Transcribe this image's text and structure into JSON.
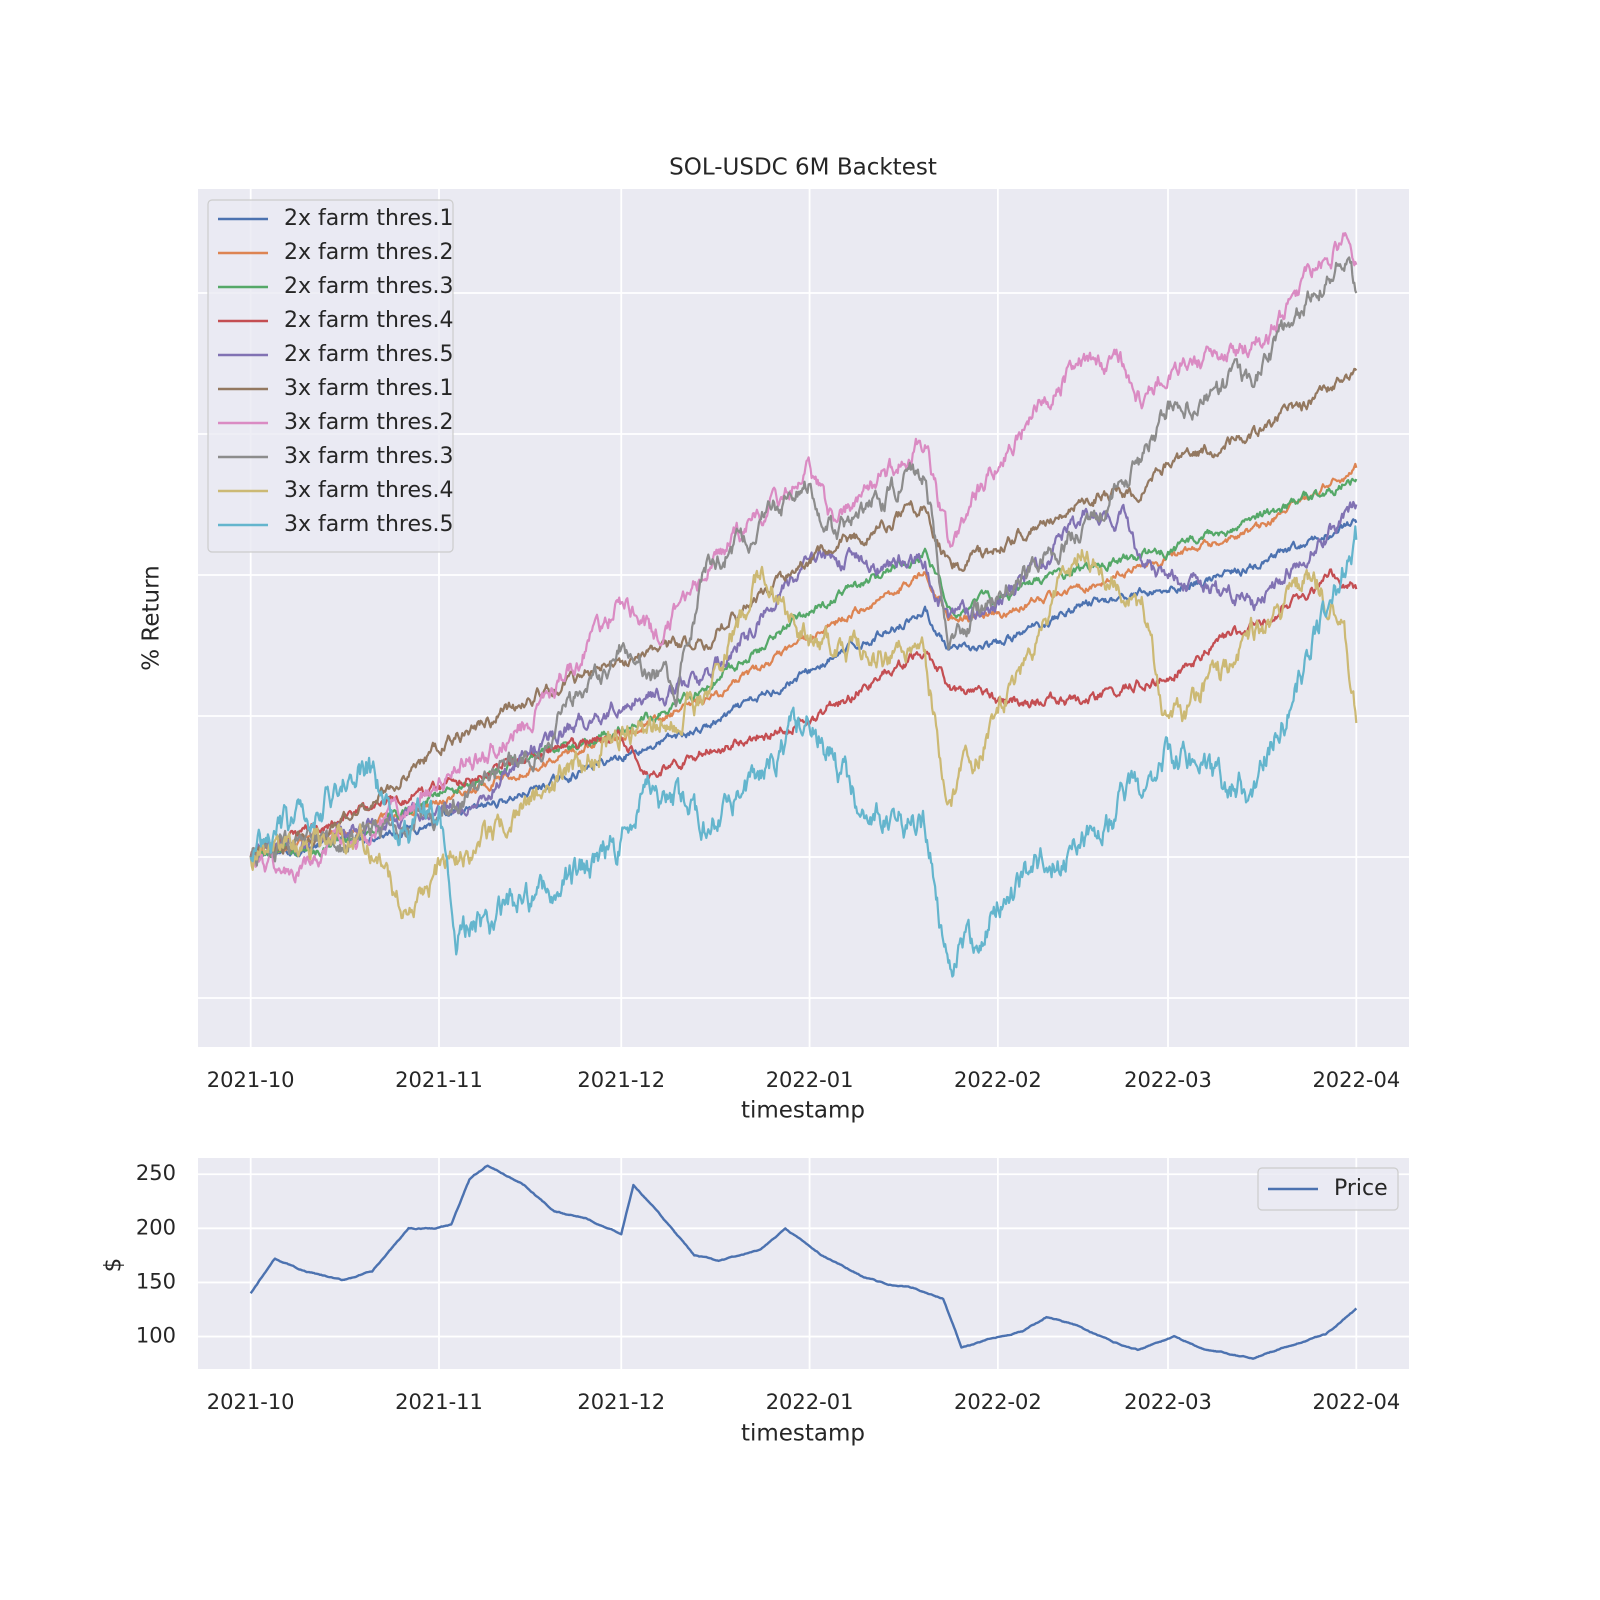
{
  "chart_data": [
    {
      "type": "line",
      "title": "SOL-USDC 6M Backtest",
      "xlabel": "timestamp",
      "ylabel": "% Return",
      "x_range": [
        "2021-10-01",
        "2022-04-01"
      ],
      "x_ticks": [
        "2021-10",
        "2021-11",
        "2021-12",
        "2022-01",
        "2022-02",
        "2022-03",
        "2022-04"
      ],
      "y_tick_labels_shown": false,
      "grid": true,
      "legend": "top-left",
      "series": [
        {
          "name": "2x farm thres.1",
          "color": "#4c72b0",
          "noise": 0.3,
          "points": [
            [
              "2021-10-01",
              0
            ],
            [
              "2021-10-15",
              0.1
            ],
            [
              "2021-11-01",
              0.25
            ],
            [
              "2021-11-15",
              0.45
            ],
            [
              "2021-12-01",
              0.72
            ],
            [
              "2021-12-15",
              0.92
            ],
            [
              "2022-01-01",
              1.32
            ],
            [
              "2022-01-20",
              1.75
            ],
            [
              "2022-01-24",
              1.45
            ],
            [
              "2022-02-01",
              1.5
            ],
            [
              "2022-02-15",
              1.8
            ],
            [
              "2022-03-01",
              1.9
            ],
            [
              "2022-03-15",
              2.05
            ],
            [
              "2022-04-01",
              2.37
            ]
          ]
        },
        {
          "name": "2x farm thres.2",
          "color": "#dd8452",
          "noise": 0.3,
          "points": [
            [
              "2021-10-01",
              0
            ],
            [
              "2021-10-15",
              0.15
            ],
            [
              "2021-11-01",
              0.4
            ],
            [
              "2021-11-15",
              0.62
            ],
            [
              "2021-12-01",
              0.88
            ],
            [
              "2021-12-15",
              1.1
            ],
            [
              "2022-01-01",
              1.55
            ],
            [
              "2022-01-20",
              2.02
            ],
            [
              "2022-01-24",
              1.7
            ],
            [
              "2022-02-01",
              1.72
            ],
            [
              "2022-02-15",
              1.92
            ],
            [
              "2022-03-01",
              2.12
            ],
            [
              "2022-03-15",
              2.3
            ],
            [
              "2022-04-01",
              2.76
            ]
          ]
        },
        {
          "name": "2x farm thres.3",
          "color": "#55a868",
          "noise": 0.35,
          "points": [
            [
              "2021-10-01",
              0
            ],
            [
              "2021-10-15",
              0.08
            ],
            [
              "2021-11-01",
              0.45
            ],
            [
              "2021-11-15",
              0.68
            ],
            [
              "2021-12-01",
              0.9
            ],
            [
              "2021-12-15",
              1.2
            ],
            [
              "2022-01-01",
              1.75
            ],
            [
              "2022-01-20",
              2.15
            ],
            [
              "2022-01-24",
              1.75
            ],
            [
              "2022-02-01",
              1.85
            ],
            [
              "2022-02-15",
              2.05
            ],
            [
              "2022-03-01",
              2.17
            ],
            [
              "2022-03-15",
              2.4
            ],
            [
              "2022-04-01",
              2.68
            ]
          ]
        },
        {
          "name": "2x farm thres.4",
          "color": "#c44e52",
          "noise": 0.4,
          "points": [
            [
              "2021-10-01",
              0
            ],
            [
              "2021-10-15",
              0.28
            ],
            [
              "2021-11-01",
              0.5
            ],
            [
              "2021-11-15",
              0.7
            ],
            [
              "2021-12-01",
              0.85
            ],
            [
              "2021-12-06",
              0.6
            ],
            [
              "2021-12-15",
              0.75
            ],
            [
              "2022-01-01",
              0.98
            ],
            [
              "2022-01-20",
              1.45
            ],
            [
              "2022-01-24",
              1.2
            ],
            [
              "2022-02-01",
              1.1
            ],
            [
              "2022-02-15",
              1.1
            ],
            [
              "2022-03-01",
              1.3
            ],
            [
              "2022-03-15",
              1.65
            ],
            [
              "2022-03-28",
              2.0
            ],
            [
              "2022-04-01",
              1.9
            ]
          ]
        },
        {
          "name": "2x farm thres.5",
          "color": "#8172b3",
          "noise": 0.6,
          "points": [
            [
              "2021-10-01",
              0
            ],
            [
              "2021-10-15",
              0.2
            ],
            [
              "2021-11-01",
              0.3
            ],
            [
              "2021-11-08",
              0.4
            ],
            [
              "2021-11-15",
              0.75
            ],
            [
              "2021-12-01",
              1.1
            ],
            [
              "2021-12-15",
              1.25
            ],
            [
              "2022-01-01",
              2.1
            ],
            [
              "2022-01-20",
              2.1
            ],
            [
              "2022-01-24",
              1.68
            ],
            [
              "2022-02-01",
              1.8
            ],
            [
              "2022-02-15",
              2.4
            ],
            [
              "2022-02-22",
              2.4
            ],
            [
              "2022-02-25",
              2.05
            ],
            [
              "2022-03-01",
              2.0
            ],
            [
              "2022-03-15",
              1.8
            ],
            [
              "2022-04-01",
              2.5
            ]
          ]
        },
        {
          "name": "3x farm thres.1",
          "color": "#937860",
          "noise": 0.45,
          "points": [
            [
              "2021-10-01",
              0
            ],
            [
              "2021-10-15",
              0.2
            ],
            [
              "2021-11-01",
              0.78
            ],
            [
              "2021-11-15",
              1.1
            ],
            [
              "2021-12-01",
              1.4
            ],
            [
              "2021-12-15",
              1.55
            ],
            [
              "2022-01-01",
              2.1
            ],
            [
              "2022-01-20",
              2.5
            ],
            [
              "2022-01-24",
              2.05
            ],
            [
              "2022-02-01",
              2.2
            ],
            [
              "2022-02-15",
              2.55
            ],
            [
              "2022-02-25",
              2.6
            ],
            [
              "2022-03-01",
              2.8
            ],
            [
              "2022-03-15",
              3.0
            ],
            [
              "2022-04-01",
              3.45
            ]
          ]
        },
        {
          "name": "3x farm thres.2",
          "color": "#da8bc3",
          "noise": 0.7,
          "points": [
            [
              "2021-10-01",
              0
            ],
            [
              "2021-10-08",
              -0.15
            ],
            [
              "2021-10-15",
              0.05
            ],
            [
              "2021-11-01",
              0.52
            ],
            [
              "2021-11-15",
              0.95
            ],
            [
              "2021-12-01",
              1.8
            ],
            [
              "2021-12-07",
              1.55
            ],
            [
              "2021-12-15",
              2.05
            ],
            [
              "2022-01-01",
              2.75
            ],
            [
              "2022-01-05",
              2.35
            ],
            [
              "2022-01-20",
              2.95
            ],
            [
              "2022-01-24",
              2.2
            ],
            [
              "2022-02-01",
              2.8
            ],
            [
              "2022-02-15",
              3.55
            ],
            [
              "2022-02-22",
              3.5
            ],
            [
              "2022-02-25",
              3.2
            ],
            [
              "2022-03-01",
              3.5
            ],
            [
              "2022-03-15",
              3.6
            ],
            [
              "2022-03-30",
              4.4
            ],
            [
              "2022-04-01",
              4.2
            ]
          ]
        },
        {
          "name": "3x farm thres.3",
          "color": "#8c8c8c",
          "noise": 0.75,
          "points": [
            [
              "2021-10-01",
              0
            ],
            [
              "2021-10-15",
              0.1
            ],
            [
              "2021-11-01",
              0.3
            ],
            [
              "2021-11-15",
              0.7
            ],
            [
              "2021-12-01",
              1.5
            ],
            [
              "2021-12-10",
              1.2
            ],
            [
              "2021-12-15",
              2.05
            ],
            [
              "2022-01-01",
              2.65
            ],
            [
              "2022-01-05",
              2.3
            ],
            [
              "2022-01-20",
              2.75
            ],
            [
              "2022-01-24",
              1.55
            ],
            [
              "2022-02-01",
              1.85
            ],
            [
              "2022-02-15",
              2.35
            ],
            [
              "2022-02-25",
              2.8
            ],
            [
              "2022-03-01",
              3.2
            ],
            [
              "2022-03-15",
              3.4
            ],
            [
              "2022-03-30",
              4.3
            ],
            [
              "2022-04-01",
              4.0
            ]
          ]
        },
        {
          "name": "3x farm thres.4",
          "color": "#ccb974",
          "noise": 0.9,
          "points": [
            [
              "2021-10-01",
              0
            ],
            [
              "2021-10-20",
              0.15
            ],
            [
              "2021-10-27",
              -0.4
            ],
            [
              "2021-11-01",
              -0.1
            ],
            [
              "2021-11-15",
              0.35
            ],
            [
              "2021-12-01",
              0.9
            ],
            [
              "2021-12-15",
              1.1
            ],
            [
              "2021-12-24",
              2.0
            ],
            [
              "2022-01-01",
              1.5
            ],
            [
              "2022-01-20",
              1.4
            ],
            [
              "2022-01-24",
              0.4
            ],
            [
              "2022-02-01",
              1.0
            ],
            [
              "2022-02-15",
              2.2
            ],
            [
              "2022-02-25",
              1.8
            ],
            [
              "2022-03-01",
              0.9
            ],
            [
              "2022-03-15",
              1.6
            ],
            [
              "2022-03-25",
              2.0
            ],
            [
              "2022-03-30",
              1.6
            ],
            [
              "2022-04-01",
              0.95
            ]
          ]
        },
        {
          "name": "3x farm thres.5",
          "color": "#64b5cd",
          "noise": 1.1,
          "points": [
            [
              "2021-10-01",
              0
            ],
            [
              "2021-10-20",
              0.65
            ],
            [
              "2021-10-25",
              0.2
            ],
            [
              "2021-11-01",
              0.4
            ],
            [
              "2021-11-04",
              -0.55
            ],
            [
              "2021-11-15",
              -0.35
            ],
            [
              "2021-12-01",
              0.1
            ],
            [
              "2021-12-05",
              0.55
            ],
            [
              "2021-12-15",
              0.2
            ],
            [
              "2022-01-01",
              1.0
            ],
            [
              "2022-01-10",
              0.3
            ],
            [
              "2022-01-20",
              0.2
            ],
            [
              "2022-01-24",
              -0.8
            ],
            [
              "2022-02-01",
              -0.3
            ],
            [
              "2022-02-15",
              0.1
            ],
            [
              "2022-03-01",
              0.7
            ],
            [
              "2022-03-15",
              0.45
            ],
            [
              "2022-04-01",
              2.25
            ]
          ]
        }
      ]
    },
    {
      "type": "line",
      "xlabel": "timestamp",
      "ylabel": "$",
      "x_range": [
        "2021-10-01",
        "2022-04-01"
      ],
      "x_ticks": [
        "2021-10",
        "2021-11",
        "2021-12",
        "2022-01",
        "2022-02",
        "2022-03",
        "2022-04"
      ],
      "y_ticks": [
        100,
        150,
        200,
        250
      ],
      "ylim": [
        70,
        265
      ],
      "grid": true,
      "legend": "top-right",
      "series": [
        {
          "name": "Price",
          "color": "#4c72b0",
          "noise": 5,
          "points": [
            [
              "2021-10-01",
              140
            ],
            [
              "2021-10-05",
              172
            ],
            [
              "2021-10-10",
              160
            ],
            [
              "2021-10-16",
              152
            ],
            [
              "2021-10-21",
              160
            ],
            [
              "2021-10-27",
              200
            ],
            [
              "2021-10-31",
              200
            ],
            [
              "2021-11-03",
              203
            ],
            [
              "2021-11-06",
              245
            ],
            [
              "2021-11-09",
              258
            ],
            [
              "2021-11-15",
              240
            ],
            [
              "2021-11-20",
              215
            ],
            [
              "2021-11-25",
              210
            ],
            [
              "2021-12-01",
              195
            ],
            [
              "2021-12-03",
              240
            ],
            [
              "2021-12-07",
              215
            ],
            [
              "2021-12-13",
              175
            ],
            [
              "2021-12-17",
              170
            ],
            [
              "2021-12-24",
              180
            ],
            [
              "2021-12-28",
              200
            ],
            [
              "2022-01-03",
              175
            ],
            [
              "2022-01-10",
              155
            ],
            [
              "2022-01-14",
              148
            ],
            [
              "2022-01-18",
              145
            ],
            [
              "2022-01-23",
              135
            ],
            [
              "2022-01-26",
              90
            ],
            [
              "2022-01-31",
              98
            ],
            [
              "2022-02-05",
              105
            ],
            [
              "2022-02-09",
              118
            ],
            [
              "2022-02-14",
              110
            ],
            [
              "2022-02-20",
              95
            ],
            [
              "2022-02-24",
              88
            ],
            [
              "2022-03-02",
              100
            ],
            [
              "2022-03-07",
              88
            ],
            [
              "2022-03-15",
              80
            ],
            [
              "2022-03-20",
              90
            ],
            [
              "2022-03-27",
              102
            ],
            [
              "2022-04-01",
              126
            ]
          ]
        }
      ]
    }
  ]
}
